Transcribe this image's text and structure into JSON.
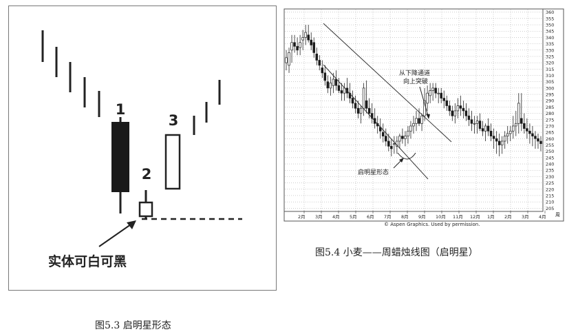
{
  "figure_left": {
    "caption": "图5.3 启明星形态",
    "candle_labels": [
      "1",
      "2",
      "3"
    ],
    "annotation": "实体可白可黑"
  },
  "figure_right": {
    "caption": "图5.4 小麦——周蜡烛线图（启明星）",
    "annotation_breakout": [
      "从下降通道",
      "向上突破"
    ],
    "annotation_pattern": "启明星形态",
    "copyright": "© Aspen Graphics. Used by permission."
  },
  "chart_data": {
    "type": "candlestick",
    "title": "",
    "series": [
      {
        "open": [
          320,
          318,
          330,
          336,
          333,
          332,
          338,
          340,
          342,
          338,
          336,
          327,
          322,
          316,
          312,
          305,
          300,
          302,
          307,
          302,
          298,
          296,
          300,
          296,
          292,
          288,
          284,
          280,
          284,
          290,
          284,
          280,
          276,
          272,
          269,
          265,
          262,
          258,
          254,
          256,
          254,
          258,
          262,
          260,
          262,
          266,
          270,
          272,
          276,
          272,
          278,
          288,
          294,
          298,
          300,
          296,
          296,
          292,
          290,
          286,
          282,
          278,
          282,
          286,
          284,
          282,
          278,
          275,
          272,
          272,
          274,
          268,
          266,
          270,
          266,
          262,
          260,
          258,
          255,
          258,
          262,
          264,
          266,
          270,
          272,
          276,
          272,
          268,
          266,
          264,
          262,
          260,
          258
        ],
        "high": [
          330,
          332,
          342,
          342,
          340,
          342,
          346,
          350,
          350,
          344,
          340,
          332,
          326,
          322,
          318,
          310,
          309,
          312,
          314,
          308,
          304,
          304,
          308,
          304,
          298,
          294,
          290,
          286,
          304,
          306,
          292,
          288,
          284,
          278,
          276,
          272,
          268,
          264,
          260,
          262,
          262,
          264,
          268,
          266,
          270,
          274,
          278,
          282,
          284,
          280,
          300,
          302,
          304,
          304,
          304,
          300,
          300,
          298,
          294,
          290,
          286,
          288,
          292,
          294,
          290,
          288,
          284,
          282,
          278,
          278,
          280,
          274,
          272,
          276,
          272,
          268,
          266,
          264,
          262,
          266,
          270,
          270,
          278,
          282,
          296,
          296,
          280,
          276,
          272,
          270,
          266,
          264,
          262
        ],
        "low": [
          314,
          312,
          320,
          328,
          326,
          326,
          330,
          334,
          336,
          330,
          324,
          318,
          314,
          308,
          302,
          296,
          294,
          296,
          298,
          296,
          290,
          290,
          292,
          288,
          284,
          280,
          276,
          272,
          278,
          280,
          276,
          272,
          268,
          264,
          260,
          257,
          254,
          250,
          246,
          248,
          248,
          252,
          256,
          254,
          256,
          260,
          264,
          266,
          270,
          266,
          274,
          282,
          288,
          290,
          292,
          288,
          288,
          284,
          282,
          278,
          274,
          272,
          276,
          278,
          276,
          274,
          270,
          266,
          264,
          264,
          266,
          262,
          258,
          262,
          258,
          252,
          248,
          246,
          248,
          252,
          256,
          258,
          260,
          262,
          264,
          266,
          264,
          260,
          256,
          254,
          252,
          252,
          250
        ],
        "close": [
          324,
          328,
          336,
          333,
          330,
          336,
          340,
          344,
          338,
          334,
          328,
          322,
          318,
          312,
          306,
          300,
          304,
          307,
          302,
          298,
          296,
          300,
          296,
          292,
          288,
          284,
          280,
          284,
          300,
          284,
          280,
          276,
          272,
          270,
          266,
          262,
          258,
          254,
          252,
          256,
          258,
          262,
          260,
          262,
          266,
          270,
          272,
          276,
          272,
          278,
          290,
          296,
          298,
          300,
          296,
          296,
          292,
          290,
          286,
          282,
          278,
          282,
          286,
          284,
          282,
          278,
          275,
          272,
          272,
          274,
          268,
          266,
          270,
          266,
          262,
          260,
          258,
          255,
          258,
          262,
          264,
          266,
          270,
          272,
          288,
          272,
          268,
          266,
          264,
          262,
          260,
          258,
          256
        ]
      }
    ],
    "x_tick_labels": [
      "2月",
      "3月",
      "4月",
      "5月",
      "6月",
      "7月",
      "8月",
      "9月",
      "10月",
      "11月",
      "12月",
      "1月",
      "2月",
      "3月",
      "4月"
    ],
    "y_tick_labels": [
      "360",
      "355",
      "350",
      "345",
      "340",
      "335",
      "330",
      "325",
      "320",
      "315",
      "310",
      "305",
      "300",
      "295",
      "290",
      "285",
      "280",
      "275",
      "270",
      "265",
      "260",
      "255",
      "250",
      "245",
      "240",
      "235",
      "230",
      "225",
      "220",
      "215",
      "210",
      "205"
    ],
    "ylim": [
      203,
      362
    ],
    "axis_extra_label": "周",
    "grid": true
  },
  "colors": {
    "candle_black": "#1a1a1a",
    "candle_white": "#ffffff",
    "grid": "#9a9a9a",
    "frame": "#555555"
  }
}
